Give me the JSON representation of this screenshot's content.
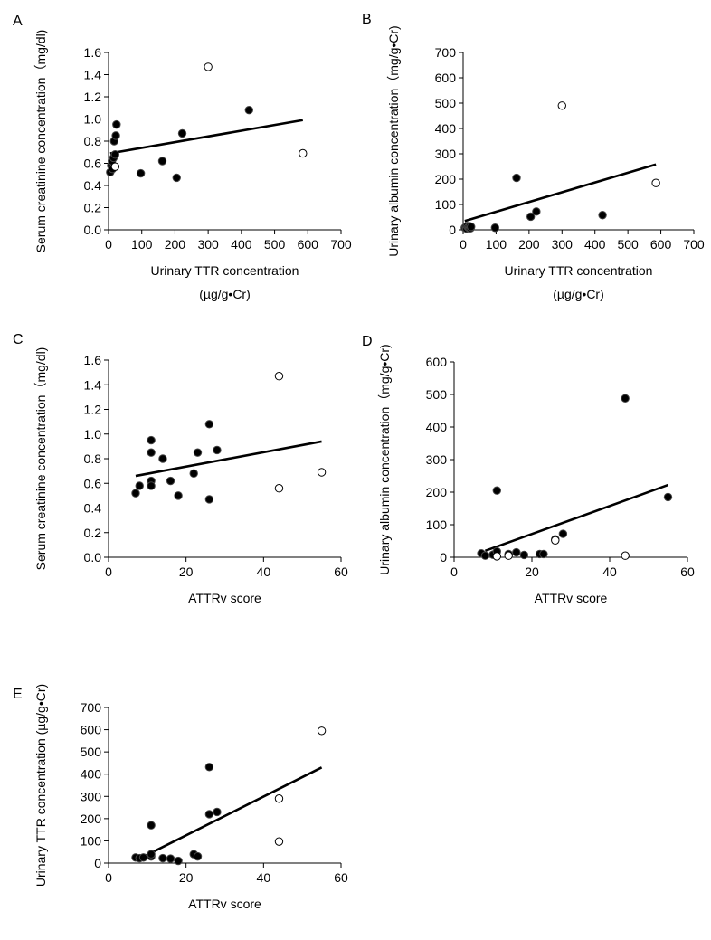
{
  "figure": {
    "background": "#ffffff",
    "ink": "#000000"
  },
  "chart_data": [
    {
      "panel": "A",
      "type": "scatter",
      "xlabel": "Urinary TTR concentration",
      "xlabel_unit": "(µg/g•Cr)",
      "ylabel": "Serum creatinine concentration（mg/dl)",
      "xlim": [
        0,
        700
      ],
      "ylim": [
        0,
        1.6
      ],
      "xticks": [
        0,
        100,
        200,
        300,
        400,
        500,
        600,
        700
      ],
      "yticks": [
        0,
        0.2,
        0.4,
        0.6,
        0.8,
        1.0,
        1.2,
        1.4,
        1.6
      ],
      "ytick_labels": [
        "0.0",
        "0.2",
        "0.4",
        "0.6",
        "0.8",
        "1.0",
        "1.2",
        "1.4",
        "1.6"
      ],
      "points_filled": [
        [
          5,
          0.52
        ],
        [
          8,
          0.58
        ],
        [
          10,
          0.62
        ],
        [
          12,
          0.55
        ],
        [
          15,
          0.65
        ],
        [
          17,
          0.8
        ],
        [
          20,
          0.68
        ],
        [
          22,
          0.85
        ],
        [
          24,
          0.95
        ],
        [
          97,
          0.51
        ],
        [
          162,
          0.62
        ],
        [
          205,
          0.47
        ],
        [
          222,
          0.87
        ],
        [
          423,
          1.08
        ]
      ],
      "points_open": [
        [
          20,
          0.57
        ],
        [
          300,
          1.47
        ],
        [
          585,
          0.69
        ]
      ],
      "trendline": [
        [
          5,
          0.69
        ],
        [
          585,
          0.99
        ]
      ]
    },
    {
      "panel": "B",
      "type": "scatter",
      "xlabel": "Urinary TTR concentration",
      "xlabel_unit": "(µg/g•Cr)",
      "ylabel": "Urinary albumin concentration（mg/g•Cr)",
      "xlim": [
        0,
        700
      ],
      "ylim": [
        0,
        700
      ],
      "xticks": [
        0,
        100,
        200,
        300,
        400,
        500,
        600,
        700
      ],
      "yticks": [
        0,
        100,
        200,
        300,
        400,
        500,
        600,
        700
      ],
      "ytick_labels": [
        "0",
        "100",
        "200",
        "300",
        "400",
        "500",
        "600",
        "700"
      ],
      "points_filled": [
        [
          5,
          8
        ],
        [
          8,
          12
        ],
        [
          10,
          5
        ],
        [
          12,
          15
        ],
        [
          15,
          10
        ],
        [
          18,
          7
        ],
        [
          20,
          14
        ],
        [
          22,
          6
        ],
        [
          24,
          12
        ],
        [
          97,
          8
        ],
        [
          162,
          205
        ],
        [
          205,
          52
        ],
        [
          222,
          72
        ],
        [
          423,
          58
        ]
      ],
      "points_open": [
        [
          300,
          490
        ],
        [
          585,
          185
        ]
      ],
      "trendline": [
        [
          5,
          35
        ],
        [
          585,
          258
        ]
      ]
    },
    {
      "panel": "C",
      "type": "scatter",
      "xlabel": "ATTRv score",
      "xlabel_unit": "",
      "ylabel": "Serum creatinine concentration（mg/dl)",
      "xlim": [
        0,
        60
      ],
      "ylim": [
        0,
        1.6
      ],
      "xticks": [
        0,
        20,
        40,
        60
      ],
      "yticks": [
        0,
        0.2,
        0.4,
        0.6,
        0.8,
        1.0,
        1.2,
        1.4,
        1.6
      ],
      "ytick_labels": [
        "0.0",
        "0.2",
        "0.4",
        "0.6",
        "0.8",
        "1.0",
        "1.2",
        "1.4",
        "1.6"
      ],
      "points_filled": [
        [
          7,
          0.52
        ],
        [
          8,
          0.58
        ],
        [
          11,
          0.95
        ],
        [
          11,
          0.85
        ],
        [
          11,
          0.62
        ],
        [
          11,
          0.58
        ],
        [
          14,
          0.8
        ],
        [
          16,
          0.62
        ],
        [
          18,
          0.5
        ],
        [
          22,
          0.68
        ],
        [
          23,
          0.85
        ],
        [
          26,
          1.08
        ],
        [
          26,
          0.47
        ],
        [
          28,
          0.87
        ]
      ],
      "points_open": [
        [
          44,
          1.47
        ],
        [
          44,
          0.56
        ],
        [
          55,
          0.69
        ]
      ],
      "trendline": [
        [
          7,
          0.66
        ],
        [
          55,
          0.94
        ]
      ]
    },
    {
      "panel": "D",
      "type": "scatter",
      "xlabel": "ATTRv score",
      "xlabel_unit": "",
      "ylabel": "Urinary albumin concentration（mg/g•Cr)",
      "xlim": [
        0,
        60
      ],
      "ylim": [
        0,
        600
      ],
      "xticks": [
        0,
        20,
        40,
        60
      ],
      "yticks": [
        0,
        100,
        200,
        300,
        400,
        500,
        600
      ],
      "ytick_labels": [
        "0",
        "100",
        "200",
        "300",
        "400",
        "500",
        "600"
      ],
      "points_filled": [
        [
          7,
          12
        ],
        [
          8,
          5
        ],
        [
          10,
          8
        ],
        [
          11,
          205
        ],
        [
          11,
          18
        ],
        [
          14,
          10
        ],
        [
          16,
          15
        ],
        [
          18,
          7
        ],
        [
          22,
          10
        ],
        [
          23,
          10
        ],
        [
          26,
          55
        ],
        [
          28,
          72
        ],
        [
          44,
          488
        ],
        [
          55,
          185
        ]
      ],
      "points_open": [
        [
          11,
          3
        ],
        [
          14,
          5
        ],
        [
          26,
          52
        ],
        [
          44,
          5
        ]
      ],
      "trendline": [
        [
          8,
          20
        ],
        [
          55,
          222
        ]
      ]
    },
    {
      "panel": "E",
      "type": "scatter",
      "xlabel": "ATTRv score",
      "xlabel_unit": "",
      "ylabel": "Urinary TTR concentration (µg/g•Cr)",
      "xlim": [
        0,
        60
      ],
      "ylim": [
        0,
        700
      ],
      "xticks": [
        0,
        20,
        40,
        60
      ],
      "yticks": [
        0,
        100,
        200,
        300,
        400,
        500,
        600,
        700
      ],
      "ytick_labels": [
        "0",
        "100",
        "200",
        "300",
        "400",
        "500",
        "600",
        "700"
      ],
      "points_filled": [
        [
          7,
          25
        ],
        [
          8,
          22
        ],
        [
          9,
          25
        ],
        [
          11,
          170
        ],
        [
          11,
          30
        ],
        [
          11,
          40
        ],
        [
          14,
          22
        ],
        [
          16,
          20
        ],
        [
          18,
          10
        ],
        [
          22,
          40
        ],
        [
          23,
          30
        ],
        [
          26,
          220
        ],
        [
          26,
          432
        ],
        [
          28,
          230
        ]
      ],
      "points_open": [
        [
          44,
          290
        ],
        [
          44,
          97
        ],
        [
          55,
          595
        ]
      ],
      "trendline": [
        [
          8,
          20
        ],
        [
          55,
          430
        ]
      ]
    }
  ]
}
